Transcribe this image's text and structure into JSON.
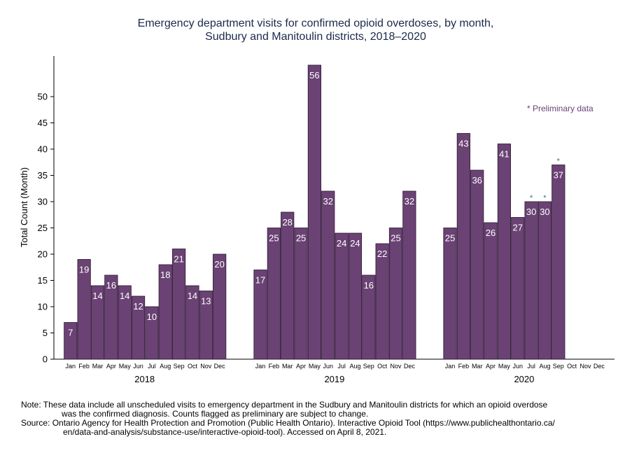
{
  "chart_data": {
    "type": "bar",
    "title_line1": "Emergency department visits for confirmed opioid overdoses, by month,",
    "title_line2": "Sudbury and Manitoulin districts, 2018–2020",
    "ylabel": "Total Count (Month)",
    "ylim": [
      0,
      57
    ],
    "yticks": [
      0,
      5,
      10,
      15,
      20,
      25,
      30,
      35,
      40,
      45,
      50
    ],
    "bar_color": "#6a4274",
    "preliminary_label": "* Preliminary data",
    "preliminary_marker": "*",
    "groups": [
      {
        "year": "2018",
        "months": [
          "Jan",
          "Feb",
          "Mar",
          "Apr",
          "May",
          "Jun",
          "Jul",
          "Aug",
          "Sep",
          "Oct",
          "Nov",
          "Dec"
        ],
        "values": [
          7,
          19,
          14,
          16,
          14,
          12,
          10,
          18,
          21,
          14,
          13,
          20
        ],
        "preliminary": []
      },
      {
        "year": "2019",
        "months": [
          "Jan",
          "Feb",
          "Mar",
          "Apr",
          "May",
          "Jun",
          "Jul",
          "Aug",
          "Sep",
          "Oct",
          "Nov",
          "Dec"
        ],
        "values": [
          17,
          25,
          28,
          25,
          56,
          32,
          24,
          24,
          16,
          22,
          25,
          32
        ],
        "preliminary": []
      },
      {
        "year": "2020",
        "months": [
          "Jan",
          "Feb",
          "Mar",
          "Apr",
          "May",
          "Jun",
          "Jul",
          "Aug",
          "Sep",
          "Oct",
          "Nov",
          "Dec"
        ],
        "values": [
          25,
          43,
          36,
          26,
          41,
          27,
          30,
          30,
          37,
          null,
          null,
          null
        ],
        "preliminary": [
          "Jul",
          "Aug",
          "Sep"
        ]
      }
    ]
  },
  "notes": {
    "note_line1": "Note: These data include all unscheduled visits to emergency department in the Sudbury and Manitoulin districts for which an opioid overdose",
    "note_line2": "was the confirmed diagnosis. Counts flagged as preliminary are subject to change.",
    "source_line1": "Source: Ontario Agency for Health Protection and Promotion (Public Health Ontario). Interactive Opioid Tool (https://www.publichealthontario.ca/",
    "source_line2": "en/data-and-analysis/substance-use/interactive-opioid-tool). Accessed on April 8, 2021."
  }
}
